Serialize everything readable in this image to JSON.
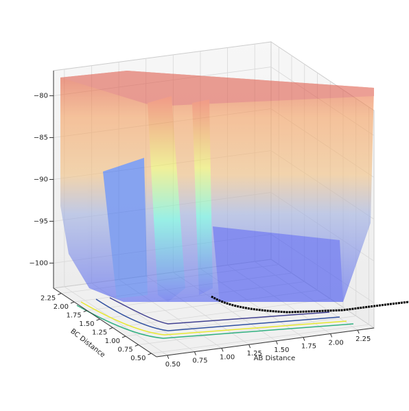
{
  "chart_data": {
    "type": "surface",
    "xlabel": "AB Distance",
    "ylabel": "BC Distance",
    "xlim": [
      0.4,
      2.4
    ],
    "ylim": [
      0.4,
      2.4
    ],
    "zlim": [
      -103,
      -77
    ],
    "xticks": [
      {
        "value": 0.5,
        "label": "0.50"
      },
      {
        "value": 0.75,
        "label": "0.75"
      },
      {
        "value": 1,
        "label": "1.00"
      },
      {
        "value": 1.25,
        "label": "1.25"
      },
      {
        "value": 1.5,
        "label": "1.50"
      },
      {
        "value": 1.75,
        "label": "1.75"
      },
      {
        "value": 2,
        "label": "2.00"
      },
      {
        "value": 2.25,
        "label": "2.25"
      }
    ],
    "yticks": [
      {
        "value": 0.5,
        "label": "0.50"
      },
      {
        "value": 0.75,
        "label": "0.75"
      },
      {
        "value": 1,
        "label": "1.00"
      },
      {
        "value": 1.25,
        "label": "1.25"
      },
      {
        "value": 1.5,
        "label": "1.50"
      },
      {
        "value": 1.75,
        "label": "1.75"
      },
      {
        "value": 2,
        "label": "2.00"
      },
      {
        "value": 2.25,
        "label": "2.25"
      }
    ],
    "zticks": [
      {
        "value": -80,
        "label": "−80"
      },
      {
        "value": -85,
        "label": "−85"
      },
      {
        "value": -90,
        "label": "−90"
      },
      {
        "value": -95,
        "label": "−95"
      },
      {
        "value": -100,
        "label": "−100"
      }
    ],
    "grid": true
  }
}
